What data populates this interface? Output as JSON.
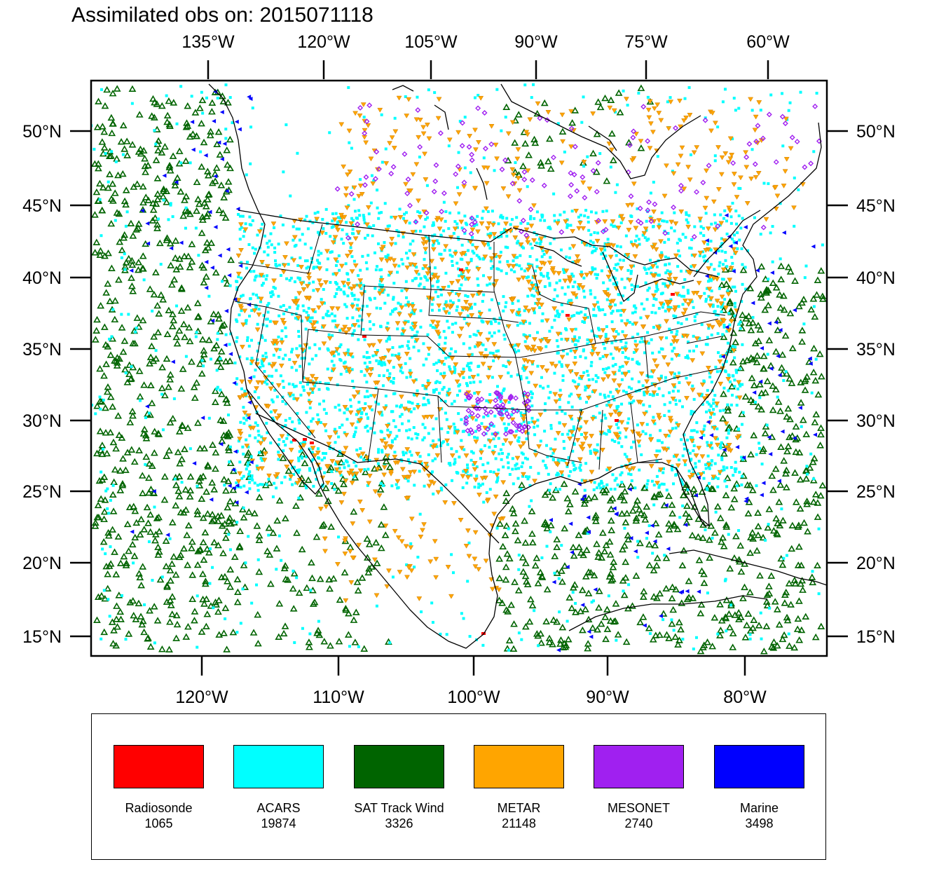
{
  "title": "Assimilated obs on: 2015071118",
  "map": {
    "top_lon_labels": [
      "135°W",
      "120°W",
      "105°W",
      "90°W",
      "75°W",
      "60°W"
    ],
    "bottom_lon_labels": [
      "120°W",
      "110°W",
      "100°W",
      "90°W",
      "80°W"
    ],
    "lat_labels": [
      "50°N",
      "45°N",
      "40°N",
      "35°N",
      "30°N",
      "25°N",
      "20°N",
      "15°N"
    ]
  },
  "legend": [
    {
      "label": "Radiosonde",
      "count": "1065",
      "color": "#ff0000"
    },
    {
      "label": "ACARS",
      "count": "19874",
      "color": "#00ffff"
    },
    {
      "label": "SAT Track Wind",
      "count": "3326",
      "color": "#006400"
    },
    {
      "label": "METAR",
      "count": "21148",
      "color": "#ffa500"
    },
    {
      "label": "MESONET",
      "count": "2740",
      "color": "#a020f0"
    },
    {
      "label": "Marine",
      "count": "3498",
      "color": "#0000ff"
    }
  ]
}
